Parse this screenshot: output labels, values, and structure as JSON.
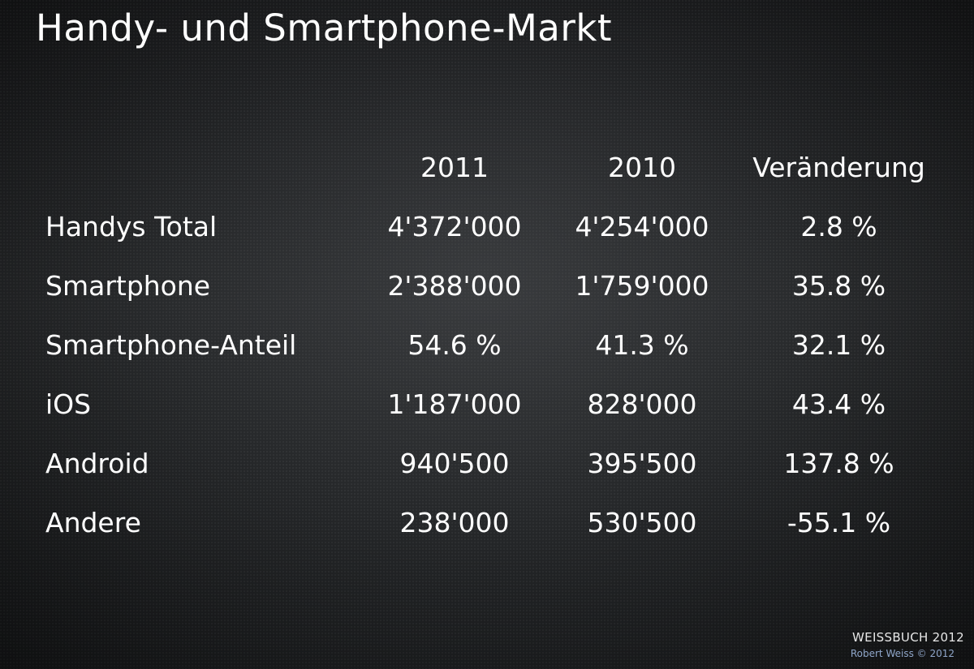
{
  "title": "Handy- und Smartphone-Markt",
  "footer": {
    "brand": "WEISSBUCH 2012",
    "credit": "Robert Weiss © 2012"
  },
  "chart_data": {
    "type": "table",
    "title": "Handy- und Smartphone-Markt",
    "columns": [
      "2011",
      "2010",
      "Veränderung"
    ],
    "rows": [
      {
        "label": "Handys Total",
        "cells": [
          "4'372'000",
          "4'254'000",
          "2.8 %"
        ]
      },
      {
        "label": "Smartphone",
        "cells": [
          "2'388'000",
          "1'759'000",
          "35.8 %"
        ]
      },
      {
        "label": "Smartphone-Anteil",
        "cells": [
          "54.6 %",
          "41.3 %",
          "32.1 %"
        ]
      },
      {
        "label": "iOS",
        "cells": [
          "1'187'000",
          "828'000",
          "43.4 %"
        ]
      },
      {
        "label": "Android",
        "cells": [
          "940'500",
          "395'500",
          "137.8 %"
        ]
      },
      {
        "label": "Andere",
        "cells": [
          "238'000",
          "530'500",
          "-55.1 %"
        ]
      }
    ],
    "colors": {
      "text": "#ffffff",
      "background": "#1d1f21",
      "credit": "#8fa6c9"
    }
  }
}
